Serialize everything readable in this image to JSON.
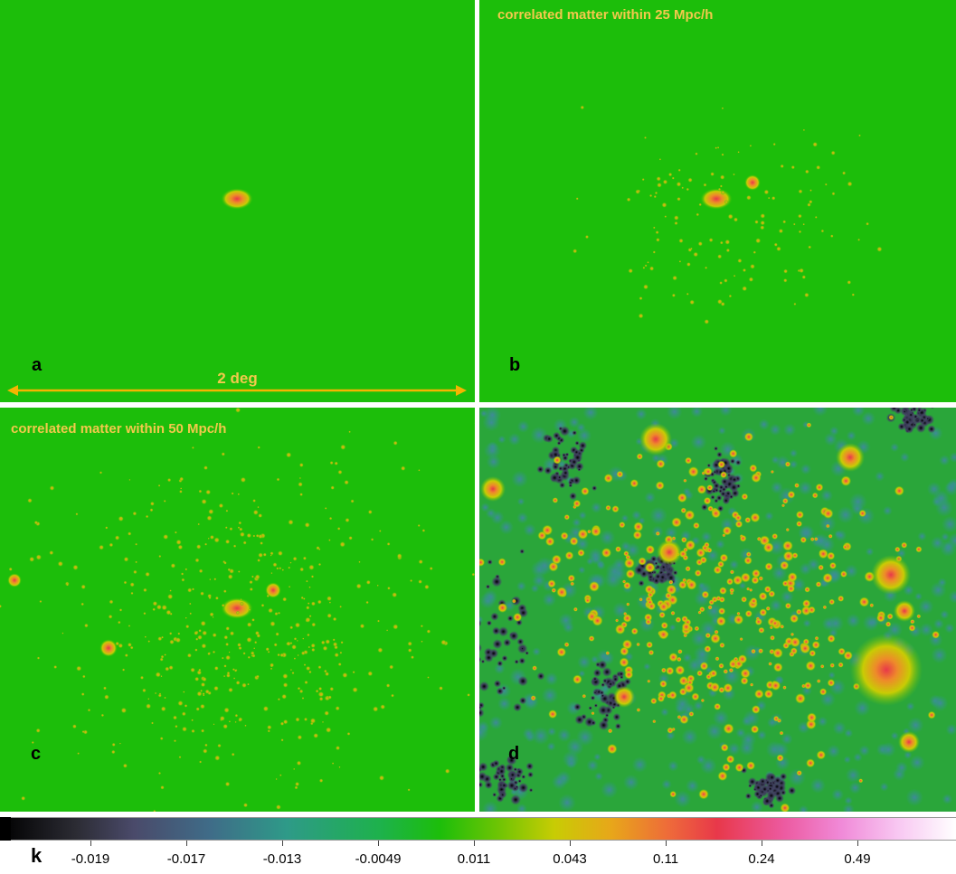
{
  "panels": {
    "a": {
      "letter": "a",
      "scale_label": "2 deg"
    },
    "b": {
      "letter": "b",
      "caption": "correlated matter within 25 Mpc/h"
    },
    "c": {
      "letter": "c",
      "caption": "correlated matter within 50 Mpc/h"
    },
    "d": {
      "letter": "d"
    }
  },
  "colorbar": {
    "symbol": "k",
    "tick_labels": [
      "-0.019",
      "-0.017",
      "-0.013",
      "-0.0049",
      "0.011",
      "0.043",
      "0.11",
      "0.24",
      "0.49"
    ]
  },
  "colors": {
    "background_green": "#1cbe0a",
    "label_yellow": "#f2c94c",
    "arrow_orange": "#f5b400"
  }
}
